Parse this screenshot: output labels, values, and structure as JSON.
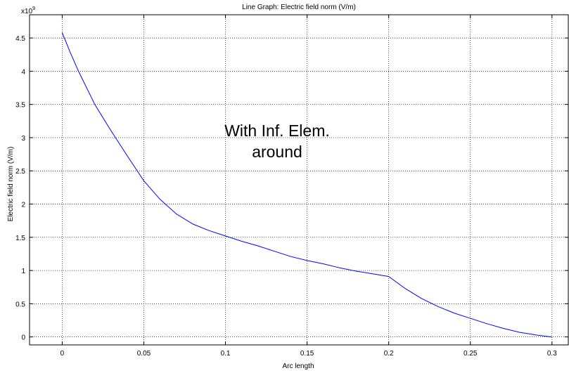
{
  "chart_data": {
    "type": "line",
    "title": "Line Graph: Electric field norm (V/m)",
    "xlabel": "Arc length",
    "ylabel": "Electric field norm (V/m)",
    "y_multiplier": "x10",
    "y_multiplier_exponent": "9",
    "xlim": [
      -0.02,
      0.31
    ],
    "ylim": [
      -0.12,
      4.85
    ],
    "x_ticks": [
      0,
      0.05,
      0.1,
      0.15,
      0.2,
      0.25,
      0.3
    ],
    "x_tick_labels": [
      "0",
      "0.05",
      "0.1",
      "0.15",
      "0.2",
      "0.25",
      "0.3"
    ],
    "y_ticks": [
      0,
      0.5,
      1,
      1.5,
      2,
      2.5,
      3,
      3.5,
      4,
      4.5
    ],
    "y_tick_labels": [
      "0",
      "0.5",
      "1",
      "1.5",
      "2",
      "2.5",
      "3",
      "3.5",
      "4",
      "4.5"
    ],
    "grid": true,
    "series": [
      {
        "color": "#0000ff",
        "x": [
          0,
          0.005,
          0.01,
          0.02,
          0.03,
          0.04,
          0.05,
          0.06,
          0.07,
          0.08,
          0.09,
          0.1,
          0.11,
          0.12,
          0.13,
          0.14,
          0.15,
          0.16,
          0.17,
          0.18,
          0.19,
          0.2,
          0.21,
          0.22,
          0.23,
          0.24,
          0.25,
          0.26,
          0.27,
          0.28,
          0.29,
          0.3
        ],
        "y": [
          4.58,
          4.28,
          4.0,
          3.5,
          3.1,
          2.72,
          2.35,
          2.07,
          1.85,
          1.7,
          1.6,
          1.52,
          1.44,
          1.37,
          1.29,
          1.21,
          1.15,
          1.1,
          1.04,
          0.99,
          0.95,
          0.91,
          0.73,
          0.58,
          0.46,
          0.36,
          0.28,
          0.2,
          0.13,
          0.07,
          0.03,
          0.0
        ]
      }
    ],
    "annotation": {
      "lines": [
        "With Inf. Elem.",
        "around"
      ]
    }
  }
}
